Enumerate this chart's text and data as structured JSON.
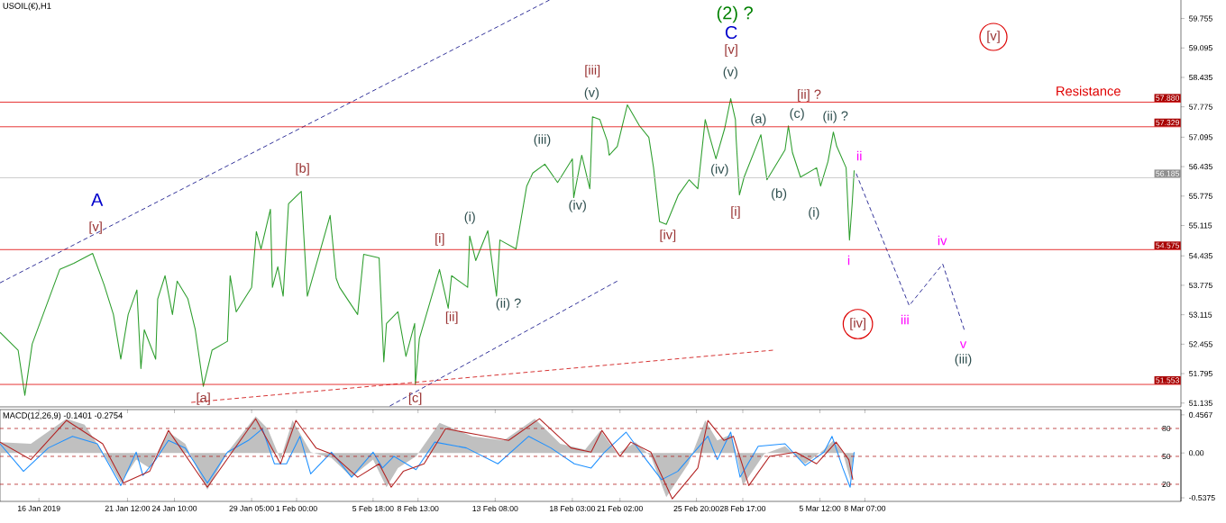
{
  "chart_data": [
    {
      "type": "line",
      "title": "USOIL(€),H1",
      "xlim": [
        "2019-01-13T14:00",
        "2019-03-27T22:00"
      ],
      "ylim": [
        51.05,
        60.17
      ],
      "yticks": [
        51.135,
        51.795,
        52.455,
        53.115,
        53.775,
        54.435,
        55.115,
        55.775,
        56.435,
        57.095,
        57.775,
        58.435,
        59.095,
        59.755
      ],
      "tick_labels": "y",
      "series": [
        {
          "color": "#2e9e2e",
          "x": [
            "2019-01-13T14:00",
            "2019-01-14T17:00",
            "2019-01-15T03:00",
            "2019-01-15T14:00",
            "2019-01-17T07:00",
            "2019-01-18T04:00",
            "2019-01-19T08:00",
            "2019-01-20T01:00",
            "2019-01-20T15:00",
            "2019-01-21T02:00",
            "2019-01-21T13:00",
            "2019-01-22T02:00",
            "2019-01-22T08:00",
            "2019-01-22T13:00",
            "2019-01-23T06:00",
            "2019-01-23T09:00",
            "2019-01-23T20:00",
            "2019-01-24T07:00",
            "2019-01-24T14:00",
            "2019-01-25T06:00",
            "2019-01-25T17:00",
            "2019-01-26T05:00",
            "2019-01-26T18:00",
            "2019-01-27T17:00",
            "2019-01-27T21:00",
            "2019-01-28T06:00",
            "2019-01-29T05:00",
            "2019-01-29T12:00",
            "2019-01-29T19:00",
            "2019-01-30T09:00",
            "2019-01-30T12:00",
            "2019-01-30T20:00",
            "2019-01-31T04:00",
            "2019-01-31T12:00",
            "2019-02-01T07:00",
            "2019-02-01T16:00",
            "2019-02-03T02:00",
            "2019-02-03T11:00",
            "2019-02-03T16:00",
            "2019-02-04T19:00",
            "2019-02-05T04:00",
            "2019-02-06T03:00",
            "2019-02-06T10:00",
            "2019-02-06T14:00",
            "2019-02-07T07:00",
            "2019-02-07T19:00",
            "2019-02-08T08:00",
            "2019-02-08T09:00",
            "2019-02-08T15:00",
            "2019-02-09T21:00",
            "2019-02-10T10:00",
            "2019-02-10T15:00",
            "2019-02-11T15:00",
            "2019-02-11T18:00",
            "2019-02-12T03:00",
            "2019-02-12T21:00",
            "2019-02-13T10:00",
            "2019-02-13T15:00",
            "2019-02-14T15:00",
            "2019-02-15T07:00",
            "2019-02-15T16:00",
            "2019-02-16T10:00",
            "2019-02-17T05:00",
            "2019-02-18T03:00",
            "2019-02-18T05:00",
            "2019-02-18T17:00",
            "2019-02-19T05:00",
            "2019-02-19T09:00",
            "2019-02-19T20:00",
            "2019-02-20T07:00",
            "2019-02-20T10:00",
            "2019-02-20T22:00",
            "2019-02-21T13:00",
            "2019-02-22T07:00",
            "2019-02-22T21:00",
            "2019-02-23T04:00",
            "2019-02-23T13:00",
            "2019-02-23T23:00",
            "2019-02-24T17:00",
            "2019-02-25T09:00",
            "2019-02-25T22:00",
            "2019-02-26T09:00",
            "2019-02-26T16:00",
            "2019-02-27T01:00",
            "2019-02-27T14:00",
            "2019-02-27T23:00",
            "2019-02-28T06:00",
            "2019-02-28T07:00",
            "2019-02-28T12:00",
            "2019-02-28T19:00",
            "2019-03-01T20:00",
            "2019-03-02T05:00",
            "2019-03-03T08:00",
            "2019-03-03T13:00",
            "2019-03-03T19:00",
            "2019-03-04T07:00",
            "2019-03-05T07:00",
            "2019-03-05T13:00",
            "2019-03-06T00:00",
            "2019-03-06T08:00",
            "2019-03-06T13:00",
            "2019-03-07T03:00",
            "2019-03-07T08:00",
            "2019-03-07T12:00",
            "2019-03-07T15:00"
          ],
          "values": [
            52.72,
            52.32,
            51.31,
            52.46,
            54.13,
            54.27,
            54.49,
            53.79,
            53.12,
            52.12,
            53.12,
            53.67,
            51.91,
            52.78,
            52.12,
            53.47,
            53.99,
            53.12,
            53.87,
            53.47,
            52.78,
            51.51,
            52.32,
            52.52,
            53.99,
            53.18,
            53.73,
            54.98,
            54.59,
            55.48,
            53.73,
            54.19,
            53.53,
            55.6,
            55.88,
            53.53,
            55.34,
            53.93,
            53.73,
            53.12,
            54.47,
            54.39,
            52.06,
            52.92,
            53.18,
            52.18,
            52.92,
            51.55,
            52.58,
            54.13,
            53.26,
            53.99,
            53.73,
            54.88,
            54.33,
            55.0,
            53.53,
            54.79,
            54.59,
            56.0,
            56.29,
            56.49,
            56.08,
            56.61,
            55.74,
            56.69,
            55.94,
            57.55,
            57.49,
            57.01,
            56.69,
            56.89,
            57.82,
            57.35,
            57.09,
            56.41,
            55.2,
            55.14,
            55.8,
            56.14,
            55.94,
            57.49,
            57.09,
            56.61,
            57.29,
            57.96,
            57.49,
            57.09,
            55.8,
            56.2,
            57.15,
            56.14,
            56.81,
            57.35,
            56.75,
            56.2,
            56.41,
            56.0,
            56.55,
            57.21,
            56.89,
            56.41,
            54.79,
            55.6,
            56.35
          ]
        },
        {
          "color": "#000080",
          "line_style": "dashed",
          "x": [
            "2019-01-13T14:00",
            "2019-02-16T17:00"
          ],
          "values": [
            53.83,
            60.17
          ]
        },
        {
          "color": "#000080",
          "line_style": "dashed",
          "x": [
            "2019-02-06T19:00",
            "2019-02-20T22:00"
          ],
          "values": [
            51.07,
            53.87
          ]
        },
        {
          "color": "#cc0000",
          "line_style": "dashed",
          "x": [
            "2019-01-25T11:00",
            "2019-03-02T14:00"
          ],
          "values": [
            51.15,
            52.32
          ]
        },
        {
          "color": "#000080",
          "line_style": "dashed",
          "x": [
            "2019-03-07T18:00",
            "2019-03-11T01:00",
            "2019-03-13T03:00",
            "2019-03-14T11:00"
          ],
          "values": [
            56.28,
            53.32,
            54.25,
            52.78
          ]
        }
      ],
      "ref_lines": [
        {
          "axis": "y",
          "value": 57.88,
          "label": "57.880",
          "color": "#e00000"
        },
        {
          "axis": "y",
          "value": 57.329,
          "label": "57.329",
          "color": "#e00000"
        },
        {
          "axis": "y",
          "value": 56.185,
          "label": "56.185",
          "color": "#c0c0c0"
        },
        {
          "axis": "y",
          "value": 54.575,
          "label": "54.575",
          "color": "#e00000"
        },
        {
          "axis": "y",
          "value": 51.553,
          "label": "51.553",
          "color": "#e00000"
        }
      ],
      "annotations": [
        "A",
        "[v]",
        "[b]",
        "[a]",
        "[c]",
        "[i]",
        "[ii]",
        "(i)",
        "(ii) ?",
        "(iii)",
        "(iv)",
        "(v)",
        "[iii]",
        "[iv]",
        "(iv)",
        "(v)",
        "[v]",
        "C",
        "(2) ?",
        "[i]",
        "(a)",
        "(b)",
        "(c)",
        "[ii] ?",
        "(ii) ?",
        "(i)",
        "ii",
        "i",
        "[iv]",
        "[v]",
        "iii",
        "iv",
        "v",
        "(iii)",
        "Resistance"
      ]
    },
    {
      "type": "line",
      "title": "MACD(12,26,9) -0.1401 -0.2754",
      "xlim": [
        "2019-01-13T14:00",
        "2019-03-27T22:00"
      ],
      "ylim": [
        -0.58,
        0.52
      ],
      "xticks": [
        {
          "value": "2019-01-16T00:00",
          "label": "16 Jan 2019"
        },
        {
          "value": "2019-01-21T12:00",
          "label": "21 Jan 12:00"
        },
        {
          "value": "2019-01-24T10:00",
          "label": "24 Jan 10:00"
        },
        {
          "value": "2019-01-29T05:00",
          "label": "29 Jan 05:00"
        },
        {
          "value": "2019-02-01T00:00",
          "label": "1 Feb 00:00"
        },
        {
          "value": "2019-02-05T18:00",
          "label": "5 Feb 18:00"
        },
        {
          "value": "2019-02-08T13:00",
          "label": "8 Feb 13:00"
        },
        {
          "value": "2019-02-13T08:00",
          "label": "13 Feb 08:00"
        },
        {
          "value": "2019-02-18T03:00",
          "label": "18 Feb 03:00"
        },
        {
          "value": "2019-02-21T02:00",
          "label": "21 Feb 02:00"
        },
        {
          "value": "2019-02-25T20:00",
          "label": "25 Feb 20:00"
        },
        {
          "value": "2019-02-28T17:00",
          "label": "28 Feb 17:00"
        },
        {
          "value": "2019-03-05T12:00",
          "label": "5 Mar 12:00"
        },
        {
          "value": "2019-03-08T07:00",
          "label": "8 Mar 07:00"
        }
      ],
      "yticks": [
        -0.5375,
        {
          "value": 0,
          "label": "0.00"
        },
        0.4567
      ],
      "y2lim": [
        1.6,
        100.3
      ],
      "y2ticks": [
        20,
        50,
        80
      ],
      "series": [
        {
          "type": "area",
          "color": "#c0c0c0",
          "x": [
            "2019-01-13T14:00",
            "2019-01-15T12:00",
            "2019-01-17T17:00",
            "2019-01-18T20:00",
            "2019-01-19T23:00",
            "2019-01-21T02:00",
            "2019-01-22T01:00",
            "2019-01-22T21:00",
            "2019-01-23T15:00",
            "2019-01-24T01:00",
            "2019-01-25T02:00",
            "2019-01-26T11:00",
            "2019-01-27T17:00",
            "2019-01-29T11:00",
            "2019-01-30T05:00",
            "2019-01-31T00:00",
            "2019-01-31T18:00",
            "2019-02-01T21:00",
            "2019-02-03T04:00",
            "2019-02-04T10:00",
            "2019-02-05T18:00",
            "2019-02-06T14:00",
            "2019-02-07T07:00",
            "2019-02-08T10:00",
            "2019-02-09T21:00",
            "2019-02-11T22:00",
            "2019-02-13T21:00",
            "2019-02-15T19:00",
            "2019-02-17T09:00",
            "2019-02-18T22:00",
            "2019-02-19T21:00",
            "2019-02-20T22:00",
            "2019-02-22T01:00",
            "2019-02-23T00:00",
            "2019-02-23T23:00",
            "2019-02-25T08:00",
            "2019-02-26T09:00",
            "2019-02-27T03:00",
            "2019-02-27T23:00",
            "2019-02-28T07:00",
            "2019-02-28T17:00",
            "2019-03-02T01:00",
            "2019-03-03T08:00",
            "2019-03-04T14:00",
            "2019-03-05T18:00",
            "2019-03-06T08:00",
            "2019-03-06T22:00",
            "2019-03-07T09:00",
            "2019-03-07T15:00"
          ],
          "values": [
            0.13,
            0.11,
            0.41,
            0.34,
            0.01,
            -0.36,
            -0.08,
            -0.18,
            0.11,
            0.25,
            0.11,
            -0.44,
            0.01,
            0.44,
            0.29,
            -0.08,
            0.39,
            0.01,
            -0.06,
            -0.29,
            -0.08,
            -0.41,
            -0.18,
            -0.04,
            0.36,
            0.2,
            0.15,
            0.41,
            0.11,
            0.04,
            0.27,
            -0.01,
            0.13,
            -0.04,
            -0.53,
            -0.13,
            0.39,
            0.15,
            0.22,
            0.01,
            -0.39,
            -0.01,
            0.08,
            -0.13,
            0.04,
            0.15,
            0.01,
            -0.32,
            0.01
          ]
        },
        {
          "color": "#1e90ff",
          "x": [
            "2019-01-13T14:00",
            "2019-01-15T01:00",
            "2019-01-16T14:00",
            "2019-01-18T02:00",
            "2019-01-19T15:00",
            "2019-01-21T02:00",
            "2019-01-22T01:00",
            "2019-01-22T11:00",
            "2019-01-23T06:00",
            "2019-01-24T01:00",
            "2019-01-25T02:00",
            "2019-01-26T11:00",
            "2019-01-27T17:00",
            "2019-01-29T00:00",
            "2019-01-29T21:00",
            "2019-01-30T15:00",
            "2019-01-31T09:00",
            "2019-02-01T05:00",
            "2019-02-01T21:00",
            "2019-02-03T04:00",
            "2019-02-04T10:00",
            "2019-02-05T18:00",
            "2019-02-06T08:00",
            "2019-02-07T01:00",
            "2019-02-08T10:00",
            "2019-02-09T14:00",
            "2019-02-11T13:00",
            "2019-02-13T12:00",
            "2019-02-15T10:00",
            "2019-02-16T19:00",
            "2019-02-18T06:00",
            "2019-02-19T07:00",
            "2019-02-20T03:00",
            "2019-02-21T11:00",
            "2019-02-22T17:00",
            "2019-02-23T16:00",
            "2019-02-24T16:00",
            "2019-02-25T22:00",
            "2019-02-26T13:00",
            "2019-02-27T03:00",
            "2019-02-27T23:00",
            "2019-02-28T13:00",
            "2019-03-01T16:00",
            "2019-03-03T08:00",
            "2019-03-04T14:00",
            "2019-03-05T18:00",
            "2019-03-06T06:00",
            "2019-03-06T22:00",
            "2019-03-07T09:00",
            "2019-03-07T15:00"
          ],
          "values": [
            0.11,
            -0.22,
            0.06,
            0.2,
            0.11,
            -0.39,
            0.01,
            -0.27,
            -0.08,
            0.15,
            0.06,
            -0.36,
            0.01,
            0.15,
            0.29,
            -0.13,
            -0.13,
            0.2,
            -0.25,
            0.01,
            -0.29,
            0.01,
            -0.18,
            -0.04,
            -0.2,
            0.13,
            0.06,
            -0.13,
            0.2,
            0.06,
            -0.13,
            -0.18,
            0.01,
            0.25,
            -0.08,
            -0.32,
            -0.22,
            0.06,
            0.2,
            -0.08,
            0.25,
            -0.29,
            0.08,
            0.11,
            -0.15,
            0.01,
            0.2,
            -0.18,
            -0.41,
            0.01
          ]
        },
        {
          "color": "#b22222",
          "x": [
            "2019-01-13T14:00",
            "2019-01-15T12:00",
            "2019-01-17T17:00",
            "2019-01-19T23:00",
            "2019-01-21T06:00",
            "2019-01-22T21:00",
            "2019-01-24T01:00",
            "2019-01-26T11:00",
            "2019-01-29T11:00",
            "2019-01-31T00:00",
            "2019-01-31T23:00",
            "2019-02-02T05:00",
            "2019-02-03T04:00",
            "2019-02-04T19:00",
            "2019-02-06T03:00",
            "2019-02-06T21:00",
            "2019-02-07T15:00",
            "2019-02-08T22:00",
            "2019-02-10T06:00",
            "2019-02-12T05:00",
            "2019-02-14T04:00",
            "2019-02-16T02:00",
            "2019-02-18T01:00",
            "2019-02-19T07:00",
            "2019-02-19T23:00",
            "2019-02-21T02:00",
            "2019-02-21T18:00",
            "2019-02-23T00:00",
            "2019-02-24T08:00",
            "2019-02-25T22:00",
            "2019-02-26T13:00",
            "2019-02-27T13:00",
            "2019-02-28T03:00",
            "2019-03-01T02:00",
            "2019-03-02T09:00",
            "2019-03-04T00:00",
            "2019-03-05T07:00",
            "2019-03-06T12:00",
            "2019-03-07T07:00",
            "2019-03-07T13:00"
          ],
          "values": [
            0.13,
            -0.08,
            0.39,
            0.11,
            -0.36,
            -0.22,
            0.27,
            -0.41,
            0.41,
            -0.13,
            0.39,
            0.06,
            -0.01,
            -0.29,
            -0.13,
            -0.41,
            -0.22,
            -0.13,
            0.29,
            0.22,
            0.15,
            0.41,
            0.06,
            0.01,
            0.27,
            -0.04,
            0.13,
            0.01,
            -0.55,
            -0.18,
            0.39,
            0.15,
            0.2,
            -0.39,
            -0.04,
            0.01,
            -0.13,
            0.13,
            -0.08,
            -0.32
          ]
        }
      ],
      "ref_lines": [
        {
          "axis": "y2",
          "value": 80,
          "color": "#b22222",
          "line_style": "dashed"
        },
        {
          "axis": "y2",
          "value": 50,
          "color": "#b22222",
          "line_style": "dashed"
        },
        {
          "axis": "y2",
          "value": 20,
          "color": "#b22222",
          "line_style": "dashed"
        }
      ]
    }
  ]
}
